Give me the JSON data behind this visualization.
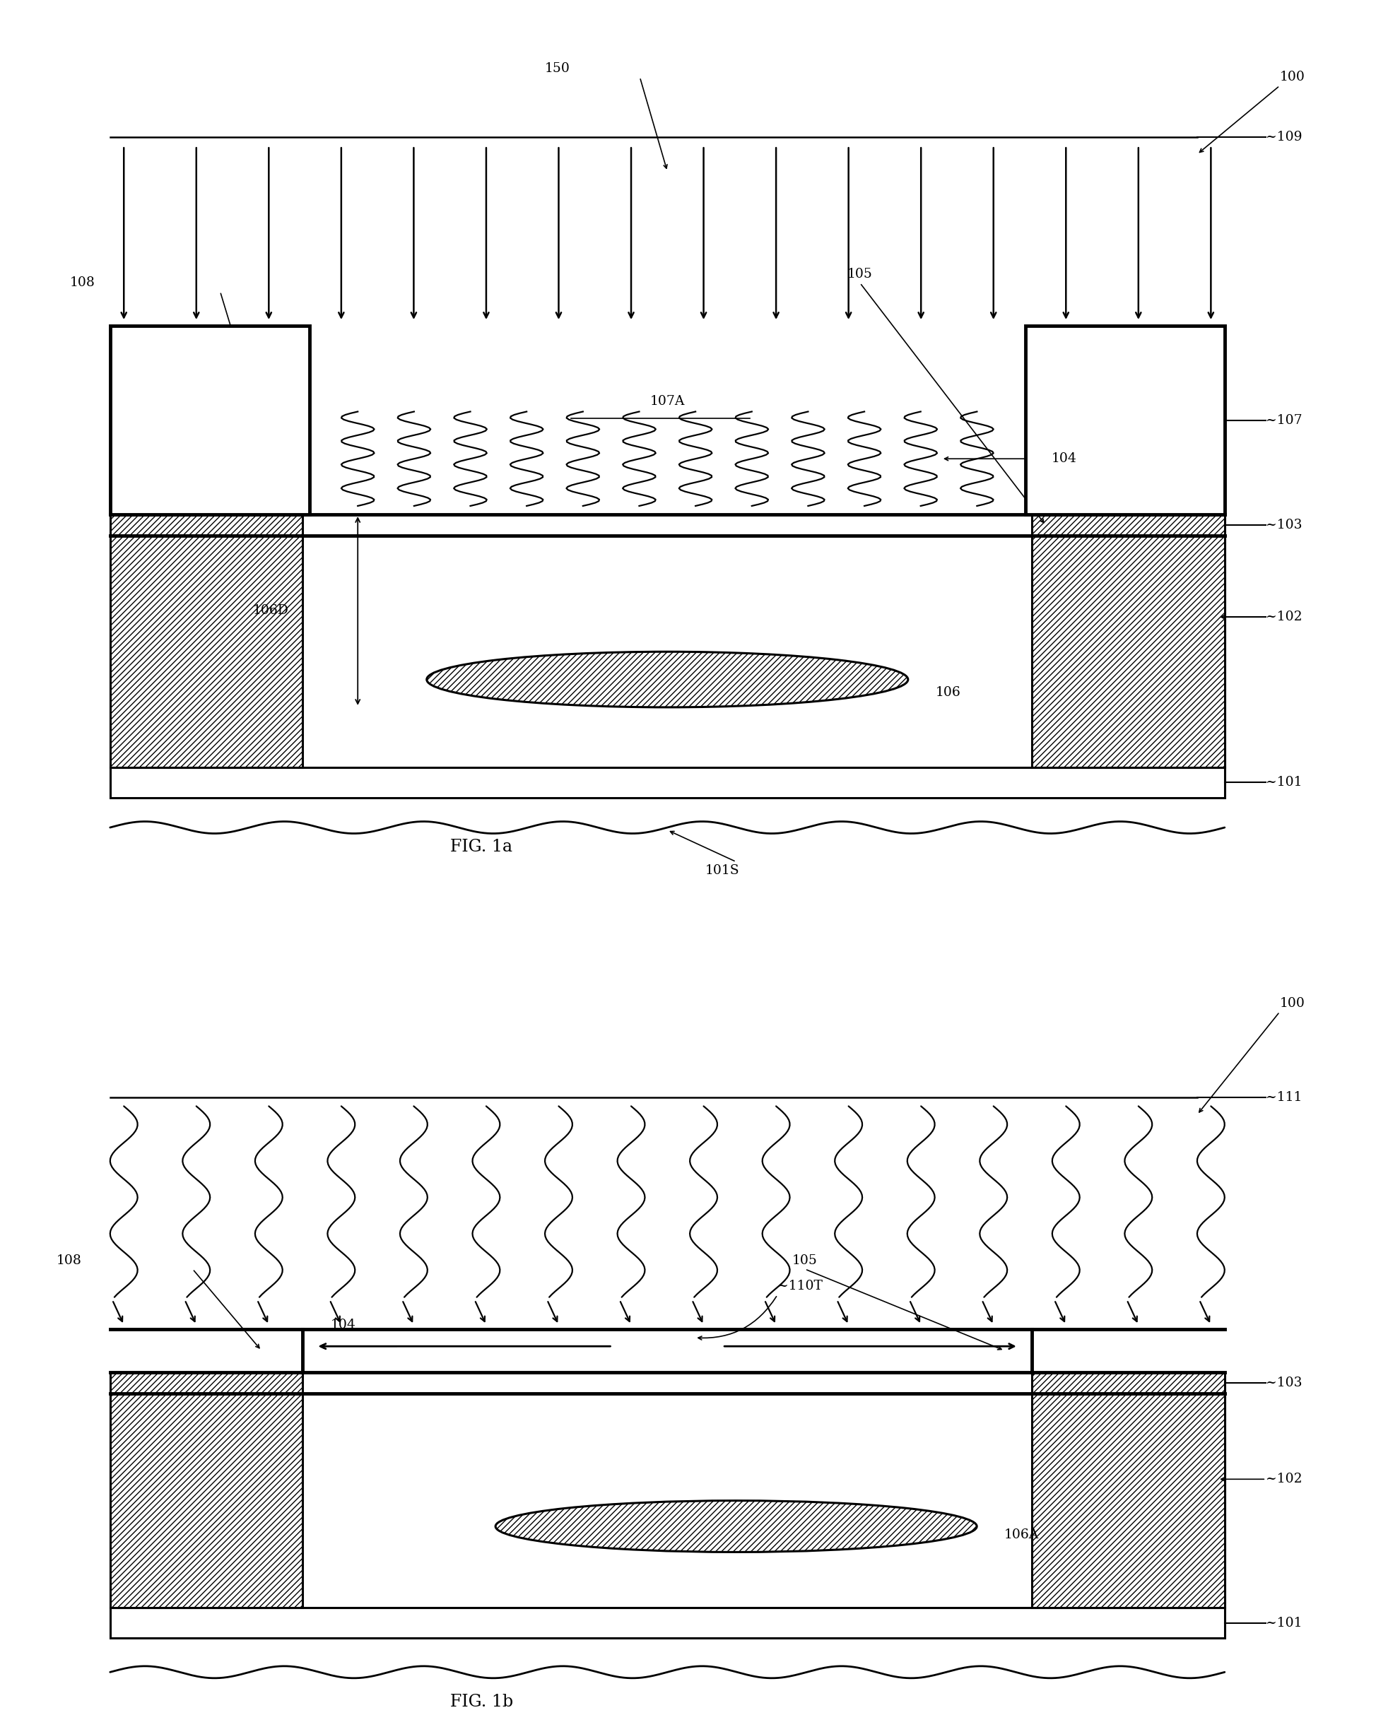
{
  "fig_width": 19.47,
  "fig_height": 24.27,
  "bg_color": "#ffffff",
  "line_color": "#000000",
  "fig1a_title": "FIG. 1a",
  "fig1b_title": "FIG. 1b",
  "labels_1a": {
    "100": "100",
    "101": "101",
    "101S": "101S",
    "102": "102",
    "103": "103",
    "104": "104",
    "105": "105",
    "106": "106",
    "106D": "106D",
    "107": "107",
    "107A": "107A",
    "108": "108",
    "109": "109",
    "150": "150"
  },
  "labels_1b": {
    "100": "100",
    "101": "101",
    "102": "102",
    "103": "103",
    "104": "104",
    "105": "105",
    "106A": "106A",
    "108": "108",
    "110T": "110T",
    "111": "111"
  }
}
